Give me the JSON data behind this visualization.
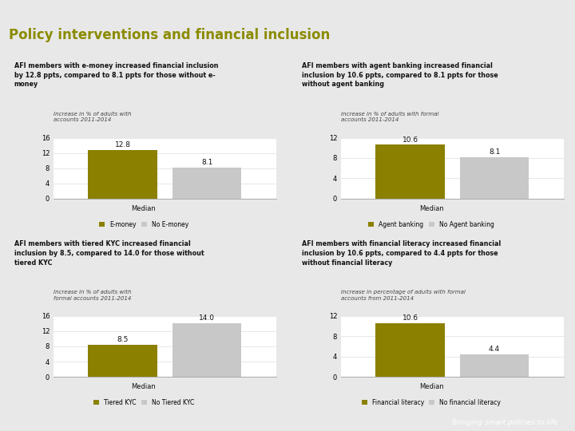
{
  "title": "Policy interventions and financial inclusion",
  "title_color": "#8B8B00",
  "bg_color": "#e8e8e8",
  "panel_bg": "#ffffff",
  "olive_color": "#8B8000",
  "gray_color": "#C8C8C8",
  "separator_color": "#8B8000",
  "bottom_bar_color": "#666666",
  "panels": [
    {
      "header": "AFI members with e-money increased financial inclusion\nby 12.8 ppts, compared to 8.1 ppts for those without e-\nmoney",
      "subtitle": "Increase in % of adults with\naccounts 2011-2014",
      "val1": 12.8,
      "val2": 8.1,
      "ymax": 16,
      "yticks": [
        0,
        4,
        8,
        12,
        16
      ],
      "label1": "E-money",
      "label2": "No E-money",
      "xlabel": "Median"
    },
    {
      "header": "AFI members with agent banking increased financial\ninclusion by 10.6 ppts, compared to 8.1 ppts for those\nwithout agent banking",
      "subtitle": "Increase in % of adults with formal\naccounts 2011-2014",
      "val1": 10.6,
      "val2": 8.1,
      "ymax": 12,
      "yticks": [
        0,
        4,
        8,
        12
      ],
      "label1": "Agent banking",
      "label2": "No Agent banking",
      "xlabel": "Median"
    },
    {
      "header": "AFI members with tiered KYC increased financial\ninclusion by 8.5, compared to 14.0 for those without\ntiered KYC",
      "subtitle": "Increase in % of adults with\nformal accounts 2011-2014",
      "val1": 8.5,
      "val2": 14.0,
      "ymax": 16,
      "yticks": [
        0,
        4,
        8,
        12,
        16
      ],
      "label1": "Tiered KYC",
      "label2": "No Tiered KYC",
      "xlabel": "Median"
    },
    {
      "header": "AFI members with financial literacy increased financial\ninclusion by 10.6 ppts, compared to 4.4 ppts for those\nwithout financial literacy",
      "subtitle": "Increase in percentage of adults with formal\naccounts from 2011-2014",
      "val1": 10.6,
      "val2": 4.4,
      "ymax": 12,
      "yticks": [
        0,
        4,
        8,
        12
      ],
      "label1": "Financial literacy",
      "label2": "No financial literacy",
      "xlabel": "Median"
    }
  ]
}
